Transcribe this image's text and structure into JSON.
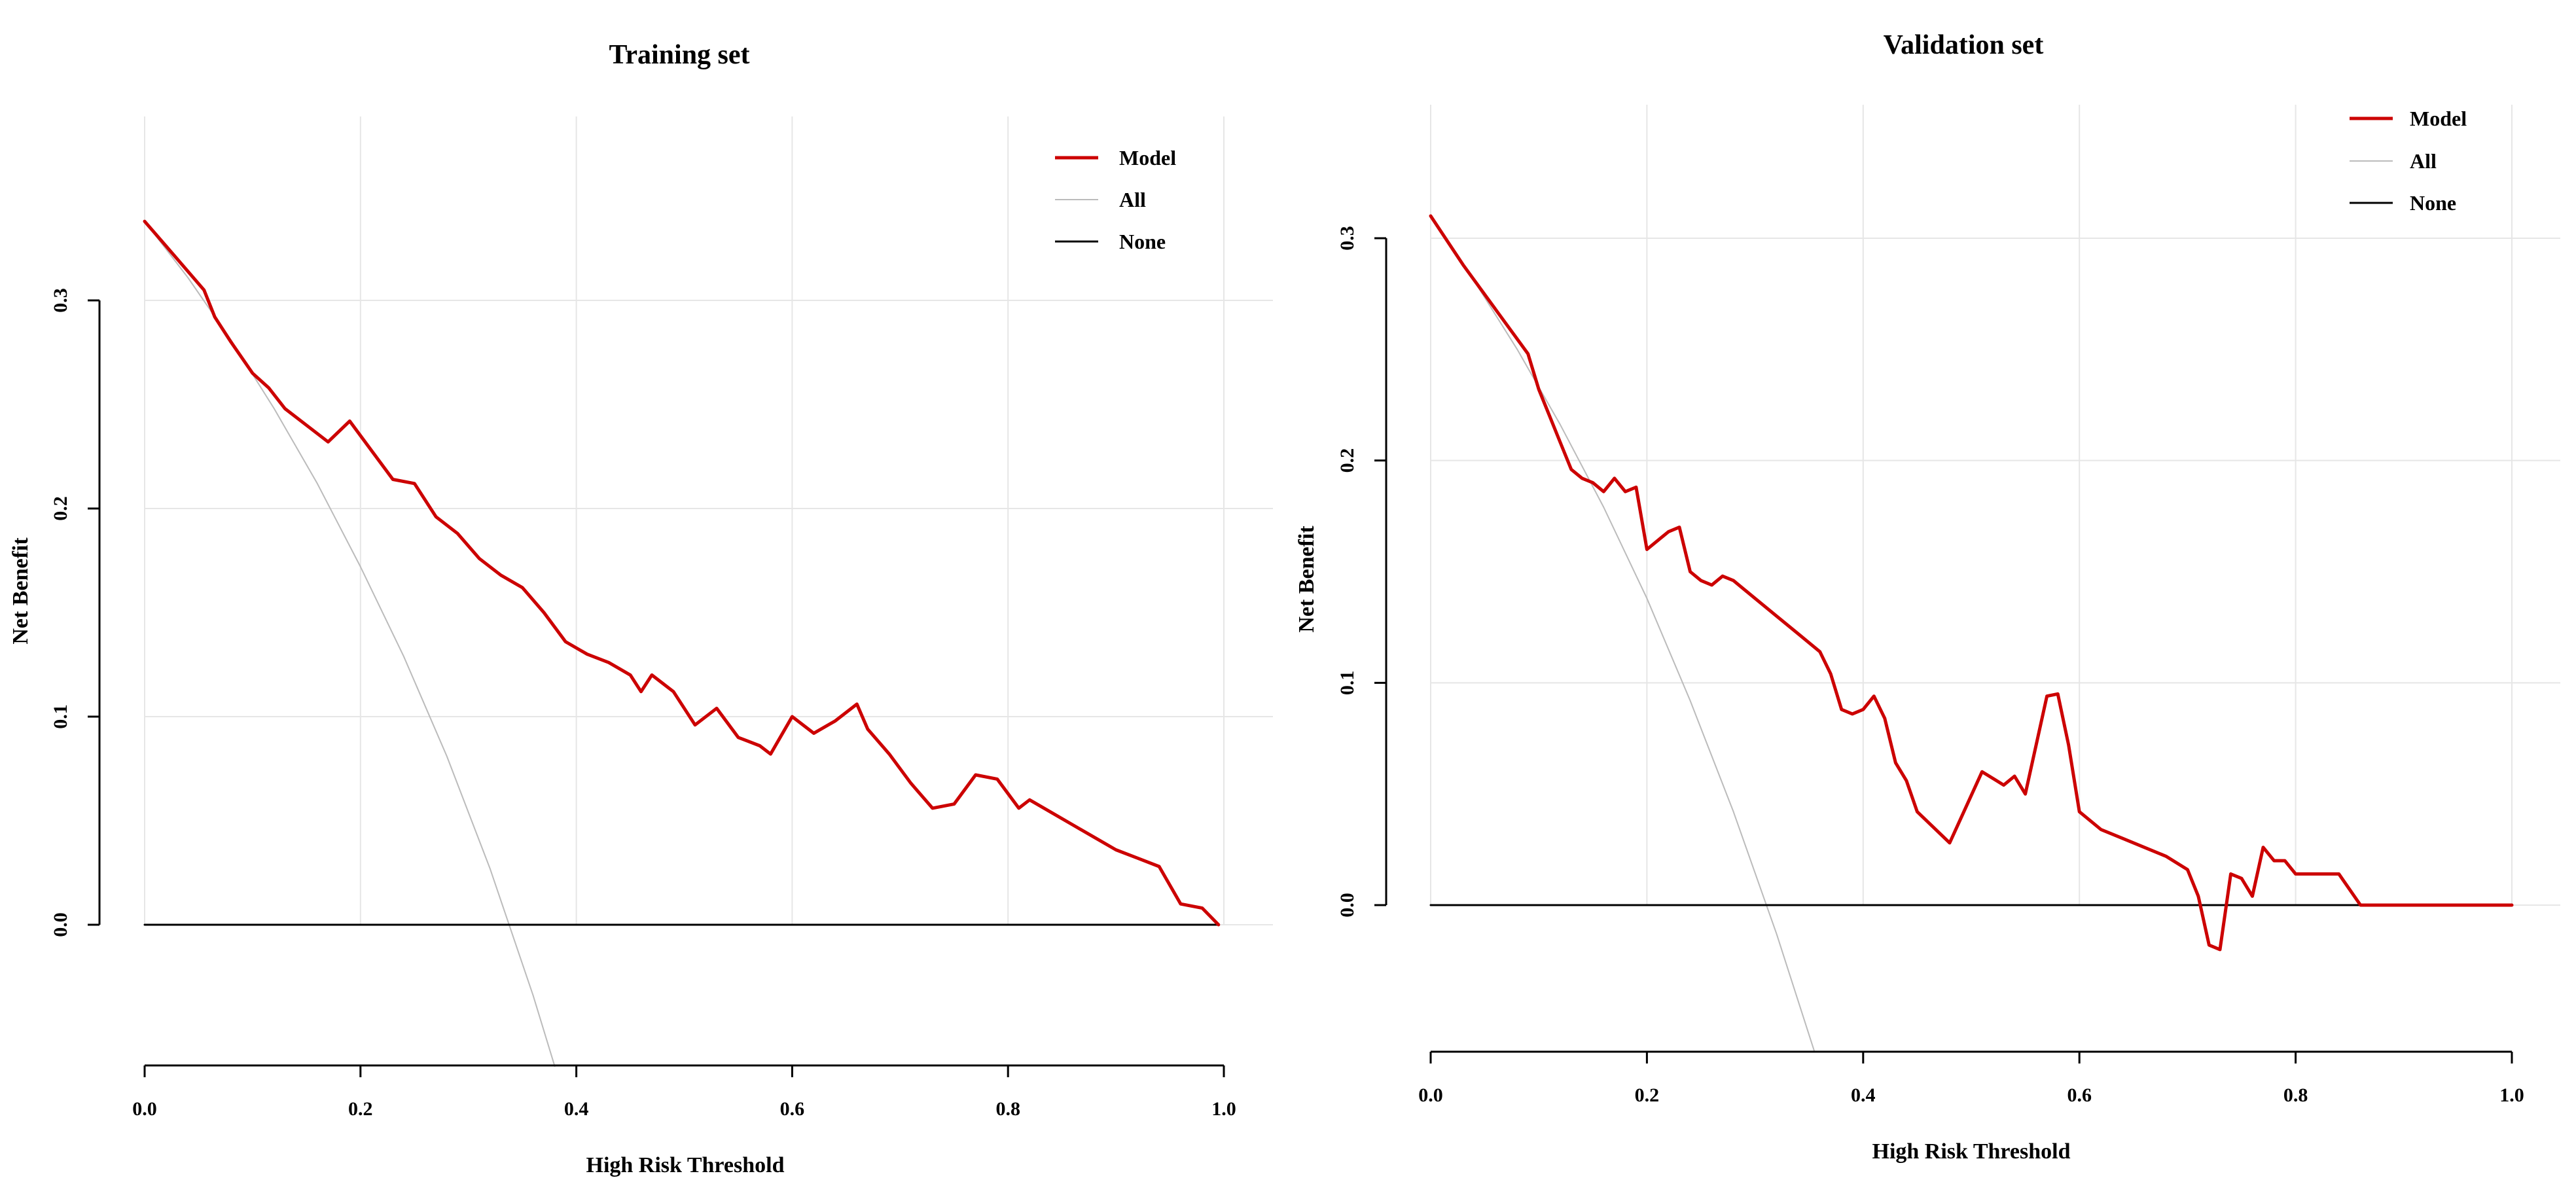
{
  "chart_data": [
    {
      "type": "line",
      "title": "Training set",
      "xlabel": "High Risk Threshold",
      "ylabel": "Net Benefit",
      "xlim": [
        0,
        1
      ],
      "ylim": [
        -0.065,
        0.39
      ],
      "xticks": [
        "0.0",
        "0.2",
        "0.4",
        "0.6",
        "0.8",
        "1.0"
      ],
      "yticks": [
        "0.0",
        "0.1",
        "0.2",
        "0.3"
      ],
      "grid": true,
      "legend_position": "top-right",
      "series": [
        {
          "name": "Model",
          "color": "#cc0000",
          "x": [
            0.0,
            0.02,
            0.04,
            0.055,
            0.065,
            0.08,
            0.1,
            0.115,
            0.13,
            0.15,
            0.17,
            0.19,
            0.21,
            0.23,
            0.25,
            0.27,
            0.29,
            0.31,
            0.33,
            0.35,
            0.37,
            0.39,
            0.41,
            0.43,
            0.45,
            0.46,
            0.47,
            0.49,
            0.51,
            0.53,
            0.55,
            0.57,
            0.58,
            0.6,
            0.62,
            0.64,
            0.66,
            0.67,
            0.69,
            0.71,
            0.73,
            0.75,
            0.77,
            0.79,
            0.81,
            0.82,
            0.84,
            0.86,
            0.88,
            0.9,
            0.92,
            0.94,
            0.96,
            0.98,
            0.995
          ],
          "y": [
            0.338,
            0.326,
            0.314,
            0.305,
            0.292,
            0.28,
            0.265,
            0.258,
            0.248,
            0.24,
            0.232,
            0.242,
            0.228,
            0.214,
            0.212,
            0.196,
            0.188,
            0.176,
            0.168,
            0.162,
            0.15,
            0.136,
            0.13,
            0.126,
            0.12,
            0.112,
            0.12,
            0.112,
            0.096,
            0.104,
            0.09,
            0.086,
            0.082,
            0.1,
            0.092,
            0.098,
            0.106,
            0.094,
            0.082,
            0.068,
            0.056,
            0.058,
            0.072,
            0.07,
            0.056,
            0.06,
            0.054,
            0.048,
            0.042,
            0.036,
            0.032,
            0.028,
            0.01,
            0.008,
            0.0
          ]
        },
        {
          "name": "All",
          "color": "#bbbbbb",
          "x": [
            0.0,
            0.04,
            0.08,
            0.12,
            0.16,
            0.2,
            0.24,
            0.28,
            0.32,
            0.36,
            0.38
          ],
          "y": [
            0.338,
            0.311,
            0.281,
            0.248,
            0.212,
            0.172,
            0.129,
            0.081,
            0.027,
            -0.034,
            -0.068
          ]
        },
        {
          "name": "None",
          "color": "#000000",
          "x": [
            0.0,
            0.995
          ],
          "y": [
            0.0,
            0.0
          ]
        }
      ]
    },
    {
      "type": "line",
      "title": "Validation set",
      "xlabel": "High Risk Threshold",
      "ylabel": "Net Benefit",
      "xlim": [
        0,
        1
      ],
      "ylim": [
        -0.065,
        0.35
      ],
      "xticks": [
        "0.0",
        "0.2",
        "0.4",
        "0.6",
        "0.8",
        "1.0"
      ],
      "yticks": [
        "0.0",
        "0.1",
        "0.2",
        "0.3"
      ],
      "grid": true,
      "legend_position": "top-right",
      "series": [
        {
          "name": "Model",
          "color": "#cc0000",
          "x": [
            0.0,
            0.03,
            0.06,
            0.09,
            0.1,
            0.11,
            0.12,
            0.13,
            0.14,
            0.15,
            0.16,
            0.17,
            0.18,
            0.19,
            0.2,
            0.21,
            0.22,
            0.23,
            0.24,
            0.25,
            0.26,
            0.27,
            0.28,
            0.3,
            0.32,
            0.34,
            0.36,
            0.37,
            0.38,
            0.39,
            0.4,
            0.41,
            0.42,
            0.43,
            0.44,
            0.45,
            0.48,
            0.51,
            0.53,
            0.54,
            0.55,
            0.56,
            0.57,
            0.58,
            0.59,
            0.6,
            0.62,
            0.64,
            0.66,
            0.68,
            0.7,
            0.71,
            0.72,
            0.73,
            0.74,
            0.75,
            0.76,
            0.77,
            0.78,
            0.79,
            0.8,
            0.82,
            0.84,
            0.86,
            0.9,
            1.0
          ],
          "y": [
            0.31,
            0.288,
            0.268,
            0.248,
            0.232,
            0.22,
            0.208,
            0.196,
            0.192,
            0.19,
            0.186,
            0.192,
            0.186,
            0.188,
            0.16,
            0.164,
            0.168,
            0.17,
            0.15,
            0.146,
            0.144,
            0.148,
            0.146,
            0.138,
            0.13,
            0.122,
            0.114,
            0.104,
            0.088,
            0.086,
            0.088,
            0.094,
            0.084,
            0.064,
            0.056,
            0.042,
            0.028,
            0.06,
            0.054,
            0.058,
            0.05,
            0.072,
            0.094,
            0.095,
            0.072,
            0.042,
            0.034,
            0.03,
            0.026,
            0.022,
            0.016,
            0.004,
            -0.018,
            -0.02,
            0.014,
            0.012,
            0.004,
            0.026,
            0.02,
            0.02,
            0.014,
            0.014,
            0.014,
            0.0,
            0.0,
            0.0
          ]
        },
        {
          "name": "All",
          "color": "#bbbbbb",
          "x": [
            0.0,
            0.04,
            0.08,
            0.12,
            0.16,
            0.2,
            0.24,
            0.28,
            0.32,
            0.355
          ],
          "y": [
            0.31,
            0.281,
            0.25,
            0.216,
            0.179,
            0.138,
            0.092,
            0.042,
            -0.013,
            -0.066
          ]
        },
        {
          "name": "None",
          "color": "#000000",
          "x": [
            0.0,
            1.0
          ],
          "y": [
            0.0,
            0.0
          ]
        }
      ]
    }
  ]
}
